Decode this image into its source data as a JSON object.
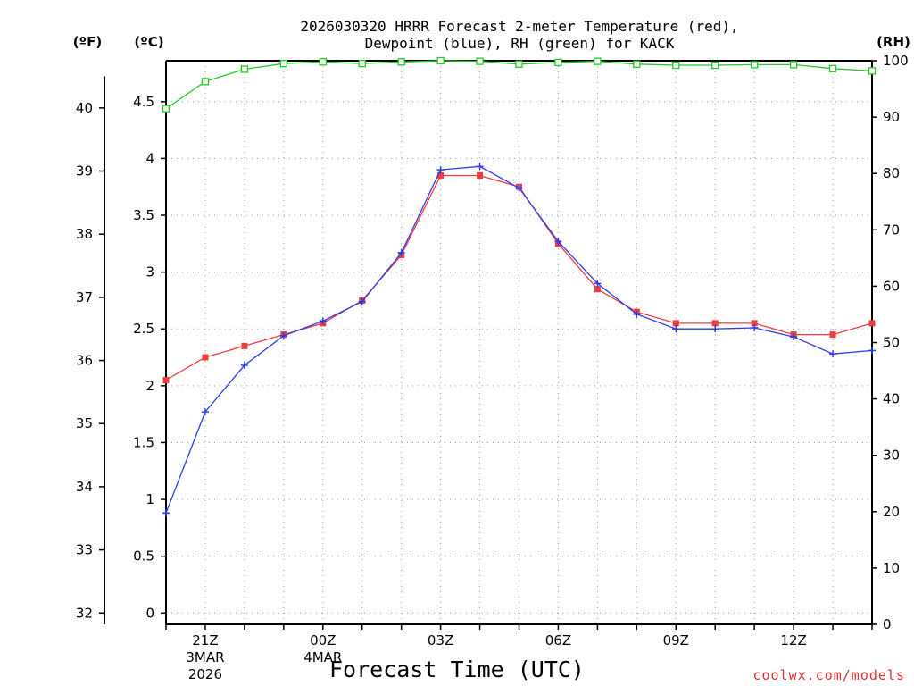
{
  "title_line1": "2026030320 HRRR Forecast 2-meter Temperature (red),",
  "title_line2": "Dewpoint (blue), RH (green) for KACK",
  "units": {
    "fahrenheit": "(ºF)",
    "celsius": "(ºC)",
    "rh": "(RH)"
  },
  "credit": "coolwx.com/models",
  "colors": {
    "temperature": "#f03c3c",
    "dewpoint": "#2b3de8",
    "rh": "#22cc22",
    "grid": "#999999"
  },
  "chart_data": {
    "type": "line",
    "xlabel": "Forecast Time (UTC)",
    "x": [
      "20Z",
      "21Z",
      "22Z",
      "23Z",
      "00Z",
      "01Z",
      "02Z",
      "03Z",
      "04Z",
      "05Z",
      "06Z",
      "07Z",
      "08Z",
      "09Z",
      "10Z",
      "11Z",
      "12Z",
      "13Z",
      "14Z"
    ],
    "x_ticks": [
      {
        "label": "21Z",
        "sub1": "3MAR",
        "sub2": "2026"
      },
      {
        "label": "00Z",
        "sub1": "4MAR",
        "sub2": ""
      },
      {
        "label": "03Z",
        "sub1": "",
        "sub2": ""
      },
      {
        "label": "06Z",
        "sub1": "",
        "sub2": ""
      },
      {
        "label": "09Z",
        "sub1": "",
        "sub2": ""
      },
      {
        "label": "12Z",
        "sub1": "",
        "sub2": ""
      }
    ],
    "y_celsius_ticks": [
      "0",
      "0.5",
      "1",
      "1.5",
      "2",
      "2.5",
      "3",
      "3.5",
      "4",
      "4.5"
    ],
    "y_fahrenheit_ticks": [
      "32",
      "33",
      "34",
      "35",
      "36",
      "37",
      "38",
      "39",
      "40"
    ],
    "y_rh_ticks": [
      "0",
      "10",
      "20",
      "30",
      "40",
      "50",
      "60",
      "70",
      "80",
      "90",
      "100"
    ],
    "ylim_celsius": [
      -0.1,
      4.86
    ],
    "ylim_rh": [
      0,
      100
    ],
    "grid": true,
    "series": [
      {
        "name": "Temperature",
        "axis": "celsius",
        "marker": "filled-square",
        "values": [
          2.05,
          2.25,
          2.35,
          2.45,
          2.55,
          2.75,
          3.15,
          3.85,
          3.85,
          3.75,
          3.25,
          2.85,
          2.65,
          2.55,
          2.55,
          2.55,
          2.45,
          2.45,
          2.55
        ]
      },
      {
        "name": "Dewpoint",
        "axis": "celsius",
        "marker": "plus",
        "values": [
          0.88,
          1.77,
          2.18,
          2.44,
          2.57,
          2.74,
          3.17,
          3.9,
          3.93,
          3.74,
          3.27,
          2.9,
          2.63,
          2.5,
          2.5,
          2.51,
          2.43,
          2.28,
          2.31
        ]
      },
      {
        "name": "RH",
        "axis": "rh",
        "marker": "open-square",
        "values": [
          91.5,
          96.3,
          98.5,
          99.5,
          99.8,
          99.5,
          99.8,
          100,
          99.9,
          99.4,
          99.7,
          99.9,
          99.4,
          99.2,
          99.2,
          99.3,
          99.3,
          98.6,
          98.2
        ]
      }
    ]
  }
}
